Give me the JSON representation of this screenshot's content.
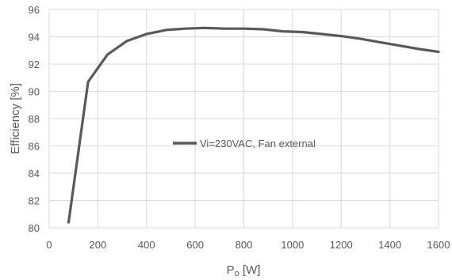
{
  "chart_data": {
    "type": "line",
    "xlabel": "Po [W]",
    "ylabel": "Efficiency [%]",
    "xlim": [
      0,
      1600
    ],
    "ylim": [
      80,
      96
    ],
    "xticks": [
      0,
      200,
      400,
      600,
      800,
      1000,
      1200,
      1400,
      1600
    ],
    "yticks": [
      80,
      82,
      84,
      86,
      88,
      90,
      92,
      94,
      96
    ],
    "grid": true,
    "legend_position": "center",
    "series": [
      {
        "name": "Vi=230VAC, Fan external",
        "color": "#595959",
        "x": [
          80,
          160,
          240,
          320,
          400,
          480,
          560,
          640,
          720,
          800,
          880,
          960,
          1040,
          1120,
          1200,
          1280,
          1360,
          1440,
          1520,
          1600
        ],
        "y": [
          80.4,
          90.7,
          92.7,
          93.7,
          94.2,
          94.5,
          94.6,
          94.65,
          94.6,
          94.6,
          94.55,
          94.4,
          94.35,
          94.2,
          94.05,
          93.85,
          93.6,
          93.35,
          93.1,
          92.9
        ]
      }
    ]
  }
}
